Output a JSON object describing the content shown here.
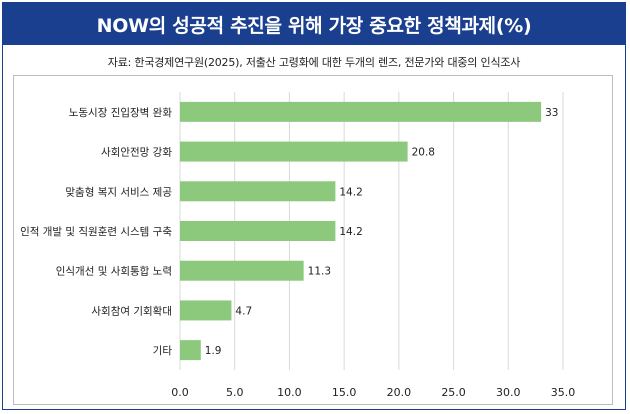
{
  "chart_data": {
    "type": "bar",
    "orientation": "horizontal",
    "title": "NOW의 성공적 추진을 위해 가장 중요한 정책과제(%)",
    "source": "자료: 한국경제연구원(2025), 저출산 고령화에 대한 두개의 렌즈, 전문가와 대중의 인식조사",
    "categories": [
      "노동시장 진입장벽 완화",
      "사회안전망 강화",
      "맞춤형 복지 서비스 제공",
      "인적 개발 및 직원훈련 시스템 구축",
      "인식개선 및 사회통합 노력",
      "사회참여 기회확대",
      "기타"
    ],
    "values": [
      33,
      20.8,
      14.2,
      14.2,
      11.3,
      4.7,
      1.9
    ],
    "value_labels": [
      "33",
      "20.8",
      "14.2",
      "14.2",
      "11.3",
      "4.7",
      "1.9"
    ],
    "xlim": [
      0,
      35
    ],
    "xticks": [
      "0.0",
      "5.0",
      "10.0",
      "15.0",
      "20.0",
      "25.0",
      "30.0",
      "35.0"
    ],
    "xlabel": "",
    "ylabel": "",
    "grid": "vertical",
    "legend": "none",
    "colors": {
      "bar": "#8cc97d",
      "title_bg": "#1a3f8f",
      "grid": "#d9d9d9"
    }
  }
}
